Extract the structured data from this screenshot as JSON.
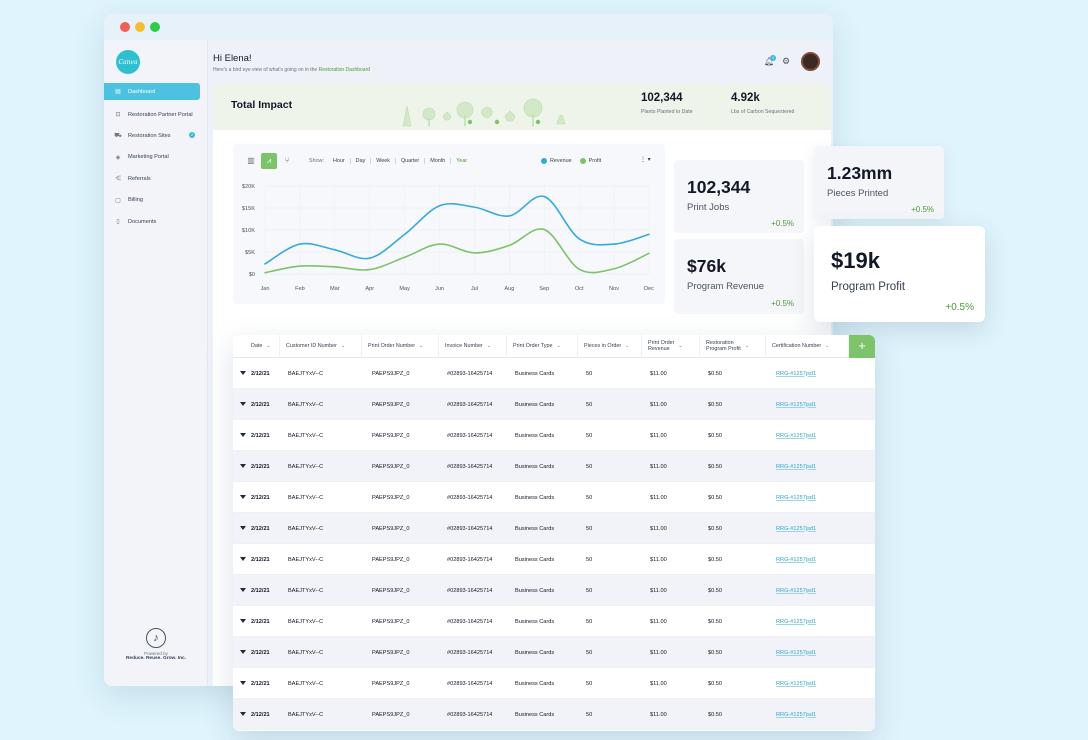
{
  "app": {
    "logo_text": "Canva",
    "window_dots": [
      "#f35f57",
      "#f5bd2f",
      "#2ecb47"
    ]
  },
  "sidebar": {
    "items": [
      {
        "label": "Dashboard",
        "icon": "dashboard-icon",
        "glyph": "▤",
        "active": true
      },
      {
        "label": "Restoration Partner Portal",
        "icon": "portal-icon",
        "glyph": "⊡"
      },
      {
        "label": "Restoration Sites",
        "icon": "sites-icon",
        "glyph": "⛟",
        "badge": "2"
      },
      {
        "label": "Marketing Portal",
        "icon": "marketing-icon",
        "glyph": "◈"
      },
      {
        "label": "Referrals",
        "icon": "share-icon",
        "glyph": "⋲"
      },
      {
        "label": "Billing",
        "icon": "billing-icon",
        "glyph": "▢"
      },
      {
        "label": "Documents",
        "icon": "document-icon",
        "glyph": "▯"
      }
    ],
    "powered_by": "Powered by",
    "company": "Reduce. Reuse. Grow. Inc."
  },
  "header": {
    "greeting": "Hi Elena!",
    "subtitle_prefix": "Here's a bird eye view of what's going on in the",
    "subtitle_link": "Restoration Dashboard",
    "notification_count": "1"
  },
  "impact": {
    "title": "Total Impact",
    "plants_value": "102,344",
    "plants_label": "Plants Planted to Date",
    "carbon_value": "4.92k",
    "carbon_label": "Lbs of Carbon Sequestered"
  },
  "chart_controls": {
    "show_label": "Show:",
    "periods": [
      "Hour",
      "Day",
      "Week",
      "Quarter",
      "Month",
      "Year"
    ],
    "selected_period": "Year"
  },
  "chart_data": {
    "type": "line",
    "categories": [
      "Jan",
      "Feb",
      "Mar",
      "Apr",
      "May",
      "Jun",
      "Jul",
      "Aug",
      "Sep",
      "Oct",
      "Nov",
      "Dec"
    ],
    "y_ticks": [
      "$20K",
      "$15K",
      "$10K",
      "$5K",
      "$0"
    ],
    "ylim": [
      0,
      20000
    ],
    "grid": true,
    "legend_position": "top-right",
    "series": [
      {
        "name": "Revenue",
        "color": "#35a9dc",
        "values": [
          2300,
          6800,
          5500,
          3600,
          9000,
          15500,
          15200,
          13200,
          17600,
          8000,
          6800,
          9000
        ]
      },
      {
        "name": "Profit",
        "color": "#7cc36a",
        "values": [
          300,
          1800,
          1600,
          1000,
          3800,
          6800,
          4800,
          6500,
          10100,
          1100,
          1200,
          4700
        ]
      }
    ]
  },
  "kpis": [
    {
      "value": "102,344",
      "label": "Print Jobs",
      "change": "+0.5%"
    },
    {
      "value": "1.23mm",
      "label": "Pieces Printed",
      "change": "+0.5%"
    },
    {
      "value": "$76k",
      "label": "Program Revenue",
      "change": "+0.5%"
    },
    {
      "value": "$19k",
      "label": "Program Profit",
      "change": "+0.5%"
    }
  ],
  "table": {
    "columns": [
      "Date",
      "Customer ID Number",
      "Print Order Number",
      "Invoice Number",
      "Print Order Type",
      "Pieces in Order",
      "Print Order\nRevenue",
      "Restoration\nProgram Profit",
      "Certification Number"
    ],
    "rows": [
      [
        "2/12/21",
        "BAEJTYxV--C",
        "PAEPS9JPZ_0",
        "#02893-16425714",
        "Business Cards",
        "50",
        "$11.00",
        "$0.50",
        "RRG-#1257jsd1"
      ],
      [
        "2/12/21",
        "BAEJTYxV--C",
        "PAEPS9JPZ_0",
        "#02893-16425714",
        "Business Cards",
        "50",
        "$11.00",
        "$0.50",
        "RRG-#1257jsd1"
      ],
      [
        "2/12/21",
        "BAEJTYxV--C",
        "PAEPS9JPZ_0",
        "#02893-16425714",
        "Business Cards",
        "50",
        "$11.00",
        "$0.50",
        "RRG-#1257jsd1"
      ],
      [
        "2/12/21",
        "BAEJTYxV--C",
        "PAEPS9JPZ_0",
        "#02893-16425714",
        "Business Cards",
        "50",
        "$11.00",
        "$0.50",
        "RRG-#1257jsd1"
      ],
      [
        "2/12/21",
        "BAEJTYxV--C",
        "PAEPS9JPZ_0",
        "#02893-16425714",
        "Business Cards",
        "50",
        "$11.00",
        "$0.50",
        "RRG-#1257jsd1"
      ],
      [
        "2/12/21",
        "BAEJTYxV--C",
        "PAEPS9JPZ_0",
        "#02893-16425714",
        "Business Cards",
        "50",
        "$11.00",
        "$0.50",
        "RRG-#1257jsd1"
      ],
      [
        "2/12/21",
        "BAEJTYxV--C",
        "PAEPS9JPZ_0",
        "#02893-16425714",
        "Business Cards",
        "50",
        "$11.00",
        "$0.50",
        "RRG-#1257jsd1"
      ],
      [
        "2/12/21",
        "BAEJTYxV--C",
        "PAEPS9JPZ_0",
        "#02893-16425714",
        "Business Cards",
        "50",
        "$11.00",
        "$0.50",
        "RRG-#1257jsd1"
      ],
      [
        "2/12/21",
        "BAEJTYxV--C",
        "PAEPS9JPZ_0",
        "#02893-16425714",
        "Business Cards",
        "50",
        "$11.00",
        "$0.50",
        "RRG-#1257jsd1"
      ],
      [
        "2/12/21",
        "BAEJTYxV--C",
        "PAEPS9JPZ_0",
        "#02893-16425714",
        "Business Cards",
        "50",
        "$11.00",
        "$0.50",
        "RRG-#1257jsd1"
      ],
      [
        "2/12/21",
        "BAEJTYxV--C",
        "PAEPS9JPZ_0",
        "#02893-16425714",
        "Business Cards",
        "50",
        "$11.00",
        "$0.50",
        "RRG-#1257jsd1"
      ],
      [
        "2/12/21",
        "BAEJTYxV--C",
        "PAEPS9JPZ_0",
        "#02893-16425714",
        "Business Cards",
        "50",
        "$11.00",
        "$0.50",
        "RRG-#1257jsd1"
      ]
    ]
  },
  "colors": {
    "accent_blue": "#4cc2e0",
    "accent_green": "#7cc36a",
    "positive": "#4d9a37",
    "link": "#2aa5c7"
  }
}
